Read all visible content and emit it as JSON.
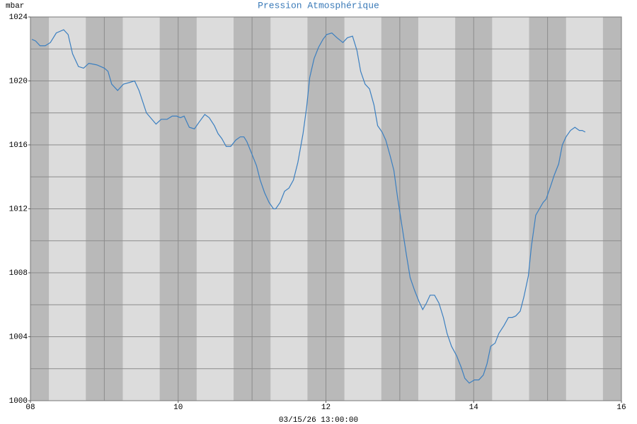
{
  "chart_data": {
    "type": "line",
    "title": "Pression Atmosphérique",
    "y_label": "mbar",
    "x_label": "03/15/26 13:00:00",
    "xlim": [
      8,
      16
    ],
    "ylim": [
      1000,
      1024
    ],
    "xticks": [
      {
        "value": 8,
        "label": "08"
      },
      10,
      12,
      14,
      16
    ],
    "yticks": [
      1000,
      1004,
      1008,
      1012,
      1016,
      1020,
      1024
    ],
    "xgrid": [
      8,
      9,
      10,
      11,
      12,
      13,
      14,
      15,
      16
    ],
    "ygrid": [
      1000,
      1002,
      1004,
      1006,
      1008,
      1010,
      1012,
      1014,
      1016,
      1018,
      1020,
      1022,
      1024
    ],
    "grid": true,
    "series": [
      {
        "color": "#3b7fc0",
        "x": [
          8.02,
          8.07,
          8.13,
          8.2,
          8.27,
          8.35,
          8.45,
          8.51,
          8.57,
          8.65,
          8.72,
          8.79,
          8.9,
          9.0,
          9.05,
          9.1,
          9.18,
          9.26,
          9.34,
          9.41,
          9.47,
          9.57,
          9.7,
          9.77,
          9.85,
          9.92,
          9.98,
          10.03,
          10.08,
          10.15,
          10.22,
          10.28,
          10.36,
          10.42,
          10.49,
          10.54,
          10.59,
          10.65,
          10.71,
          10.78,
          10.84,
          10.89,
          10.93,
          11.0,
          11.06,
          11.11,
          11.17,
          11.23,
          11.29,
          11.32,
          11.38,
          11.44,
          11.5,
          11.56,
          11.62,
          11.69,
          11.74,
          11.78,
          11.84,
          11.9,
          11.96,
          12.01,
          12.08,
          12.15,
          12.23,
          12.29,
          12.36,
          12.42,
          12.47,
          12.53,
          12.59,
          12.65,
          12.7,
          12.76,
          12.81,
          12.87,
          12.92,
          12.97,
          13.03,
          13.09,
          13.14,
          13.2,
          13.26,
          13.31,
          13.36,
          13.41,
          13.47,
          13.53,
          13.59,
          13.64,
          13.7,
          13.77,
          13.83,
          13.88,
          13.94,
          14.01,
          14.07,
          14.13,
          14.18,
          14.23,
          14.29,
          14.34,
          14.41,
          14.47,
          14.52,
          14.57,
          14.63,
          14.68,
          14.74,
          14.78,
          14.84,
          14.89,
          14.94,
          14.98,
          15.04,
          15.09,
          15.15,
          15.2,
          15.25,
          15.31,
          15.37,
          15.43,
          15.47,
          15.51
        ],
        "values": [
          1022.6,
          1022.5,
          1022.2,
          1022.2,
          1022.4,
          1023.0,
          1023.2,
          1022.9,
          1021.7,
          1020.9,
          1020.8,
          1021.1,
          1021.0,
          1020.8,
          1020.6,
          1019.8,
          1019.4,
          1019.8,
          1019.9,
          1020.0,
          1019.4,
          1018.0,
          1017.3,
          1017.6,
          1017.6,
          1017.8,
          1017.8,
          1017.7,
          1017.8,
          1017.1,
          1017.0,
          1017.4,
          1017.9,
          1017.7,
          1017.2,
          1016.7,
          1016.4,
          1015.9,
          1015.9,
          1016.3,
          1016.5,
          1016.5,
          1016.2,
          1015.4,
          1014.7,
          1013.8,
          1013.0,
          1012.4,
          1012.0,
          1012.0,
          1012.4,
          1013.1,
          1013.3,
          1013.8,
          1014.9,
          1016.7,
          1018.4,
          1020.2,
          1021.4,
          1022.1,
          1022.6,
          1022.9,
          1023.0,
          1022.7,
          1022.4,
          1022.7,
          1022.8,
          1021.9,
          1020.6,
          1019.8,
          1019.5,
          1018.5,
          1017.2,
          1016.8,
          1016.3,
          1015.3,
          1014.4,
          1012.7,
          1010.9,
          1009.1,
          1007.7,
          1006.9,
          1006.2,
          1005.7,
          1006.1,
          1006.6,
          1006.6,
          1006.1,
          1005.2,
          1004.2,
          1003.4,
          1002.8,
          1002.1,
          1001.4,
          1001.1,
          1001.3,
          1001.3,
          1001.6,
          1002.3,
          1003.4,
          1003.6,
          1004.2,
          1004.7,
          1005.2,
          1005.2,
          1005.3,
          1005.6,
          1006.5,
          1007.8,
          1009.6,
          1011.6,
          1012.0,
          1012.4,
          1012.6,
          1013.4,
          1014.1,
          1014.8,
          1016.0,
          1016.5,
          1016.9,
          1017.1,
          1016.9,
          1016.9,
          1016.8
        ]
      }
    ]
  }
}
